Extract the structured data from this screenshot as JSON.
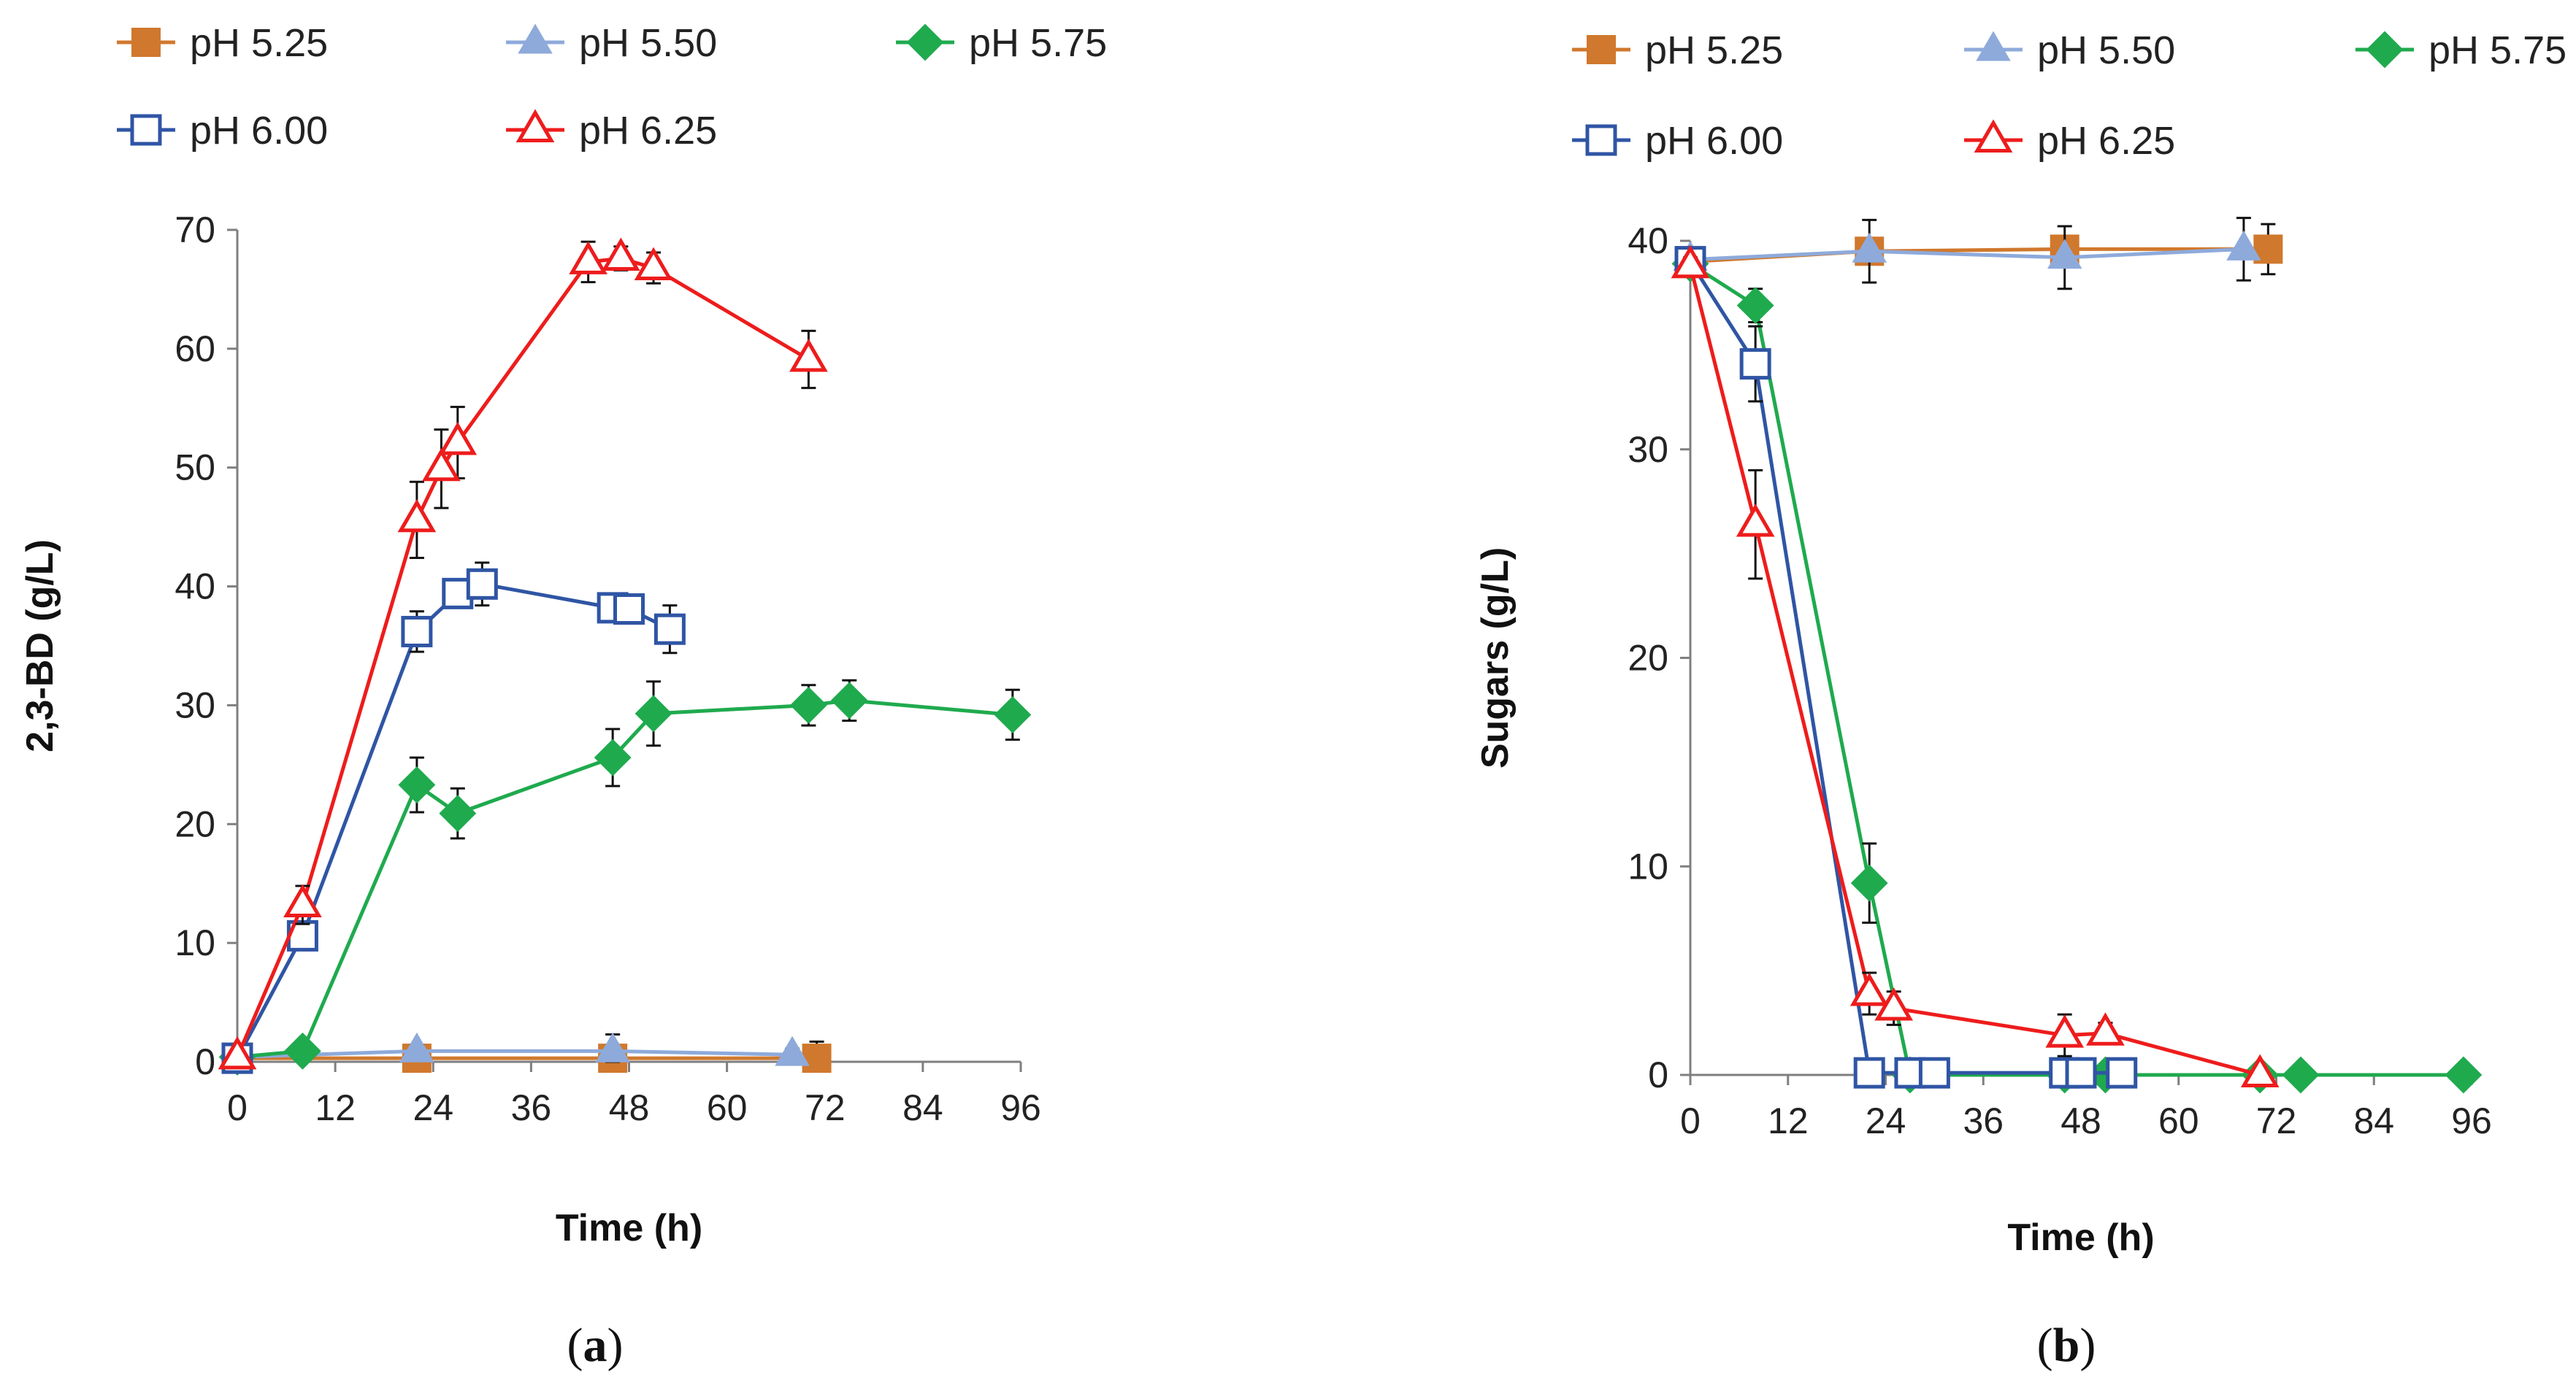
{
  "figure_captions": {
    "a": {
      "open": "(",
      "letter": "a",
      "close": ")"
    },
    "b": {
      "open": "(",
      "letter": "b",
      "close": ")"
    }
  },
  "colors": {
    "pH 5.25": "#d0782d",
    "pH 5.50": "#8eaadb",
    "pH 5.75": "#1faa4e",
    "pH 6.00": "#2f55a4",
    "pH 6.25": "#ee1c1c"
  },
  "chart_data": [
    {
      "id": "a",
      "type": "line",
      "title": "",
      "xlabel": "Time (h)",
      "ylabel": "2,3-BD (g/L)",
      "xlim": [
        0,
        96
      ],
      "ylim": [
        0,
        70
      ],
      "xticks": [
        0,
        12,
        24,
        36,
        48,
        60,
        72,
        84,
        96
      ],
      "yticks": [
        0,
        10,
        20,
        30,
        40,
        50,
        60,
        70
      ],
      "grid": false,
      "legend_position": "top",
      "series": [
        {
          "name": "pH 5.25",
          "marker": "square-filled",
          "x": [
            0,
            22,
            46,
            71
          ],
          "y": [
            0.3,
            0.3,
            0.3,
            0.3
          ],
          "err": [
            0.3,
            0.4,
            0.5,
            1.4
          ]
        },
        {
          "name": "pH 5.50",
          "marker": "triangle-filled",
          "x": [
            0,
            22,
            46,
            68
          ],
          "y": [
            0.4,
            0.9,
            0.9,
            0.6
          ],
          "err": [
            0.3,
            0.5,
            1.4,
            0.5
          ]
        },
        {
          "name": "pH 5.75",
          "marker": "diamond-filled",
          "x": [
            0,
            8,
            22,
            27,
            46,
            51,
            70,
            75,
            95
          ],
          "y": [
            0.4,
            0.9,
            23.3,
            20.9,
            25.6,
            29.3,
            30.0,
            30.4,
            29.2
          ],
          "err": [
            0.3,
            0.3,
            2.3,
            2.1,
            2.4,
            2.7,
            1.7,
            1.7,
            2.1
          ]
        },
        {
          "name": "pH 6.00",
          "marker": "square-open",
          "x": [
            0,
            8,
            22,
            27,
            30,
            46,
            48,
            53
          ],
          "y": [
            0.3,
            10.6,
            36.2,
            39.4,
            40.2,
            38.2,
            38.1,
            36.4
          ],
          "err": [
            0.3,
            0.5,
            1.7,
            1.1,
            1.8,
            1.1,
            1.2,
            2.0
          ]
        },
        {
          "name": "pH 6.25",
          "marker": "triangle-open",
          "x": [
            0,
            8,
            22,
            25,
            27,
            43,
            47,
            51,
            70
          ],
          "y": [
            0.4,
            13.2,
            45.6,
            49.9,
            52.1,
            67.3,
            67.6,
            66.8,
            59.1
          ],
          "err": [
            0.3,
            1.6,
            3.2,
            3.3,
            3.0,
            1.7,
            1.0,
            1.3,
            2.4
          ]
        }
      ]
    },
    {
      "id": "b",
      "type": "line",
      "title": "",
      "xlabel": "Time (h)",
      "ylabel": "Sugars (g/L)",
      "xlim": [
        0,
        96
      ],
      "ylim": [
        0,
        40
      ],
      "xticks": [
        0,
        12,
        24,
        36,
        48,
        60,
        72,
        84,
        96
      ],
      "yticks": [
        0,
        10,
        20,
        30,
        40
      ],
      "grid": false,
      "legend_position": "top",
      "series": [
        {
          "name": "pH 5.25",
          "marker": "square-filled",
          "x": [
            0,
            22,
            46,
            71
          ],
          "y": [
            39.0,
            39.5,
            39.6,
            39.6
          ],
          "err": [
            0.4,
            0.6,
            0.6,
            1.2
          ]
        },
        {
          "name": "pH 5.50",
          "marker": "triangle-filled",
          "x": [
            0,
            22,
            46,
            68
          ],
          "y": [
            39.1,
            39.5,
            39.2,
            39.6
          ],
          "err": [
            0.4,
            1.5,
            1.5,
            1.5
          ]
        },
        {
          "name": "pH 5.75",
          "marker": "diamond-filled",
          "x": [
            0,
            8,
            22,
            27,
            46,
            51,
            70,
            75,
            95
          ],
          "y": [
            38.9,
            36.9,
            9.2,
            0,
            0,
            0,
            0,
            0,
            0
          ],
          "err": [
            0.4,
            0.8,
            1.9,
            0,
            0,
            0,
            0,
            0,
            0
          ]
        },
        {
          "name": "pH 6.00",
          "marker": "square-open",
          "x": [
            0,
            8,
            22,
            27,
            30,
            46,
            48,
            53
          ],
          "y": [
            39.0,
            34.1,
            0.1,
            0.1,
            0.1,
            0.1,
            0.1,
            0.1
          ],
          "err": [
            0.5,
            1.8,
            0,
            0,
            0,
            0,
            0,
            0
          ]
        },
        {
          "name": "pH 6.25",
          "marker": "triangle-open",
          "x": [
            0,
            8,
            22,
            25,
            46,
            51,
            70
          ],
          "y": [
            38.8,
            26.4,
            3.9,
            3.2,
            1.9,
            2.0,
            0
          ],
          "err": [
            0.4,
            2.6,
            1.0,
            0.8,
            1.0,
            0.5,
            0
          ]
        }
      ]
    }
  ]
}
